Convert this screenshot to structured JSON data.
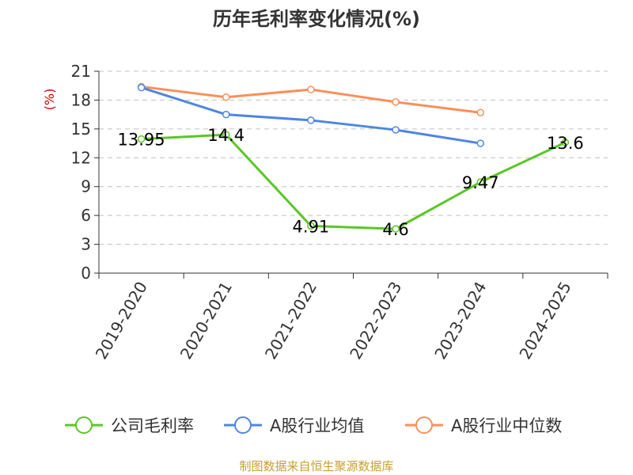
{
  "chart_data": {
    "type": "line",
    "title": "历年毛利率变化情况(%)",
    "ylabel": "(%)",
    "xlabel": "",
    "categories": [
      "2019-2020",
      "2020-2021",
      "2021-2022",
      "2022-2023",
      "2023-2024",
      "2024-2025"
    ],
    "ylim": [
      0,
      21
    ],
    "yticks": [
      0,
      3,
      6,
      9,
      12,
      15,
      18,
      21
    ],
    "grid": true,
    "legend": "bottom",
    "series": [
      {
        "name": "公司毛利率",
        "color": "#5ac726",
        "values": [
          13.95,
          14.4,
          4.91,
          4.6,
          9.47,
          13.6
        ],
        "labels": [
          "13.95",
          "14.4",
          "4.91",
          "4.6",
          "9.47",
          "13.6"
        ]
      },
      {
        "name": "A股行业均值",
        "color": "#4f86e0",
        "values": [
          19.3,
          16.5,
          15.9,
          14.9,
          13.5,
          null
        ]
      },
      {
        "name": "A股行业中位数",
        "color": "#f8905a",
        "values": [
          19.4,
          18.3,
          19.1,
          17.8,
          16.7,
          null
        ]
      }
    ]
  },
  "source": "制图数据来自恒生聚源数据库"
}
